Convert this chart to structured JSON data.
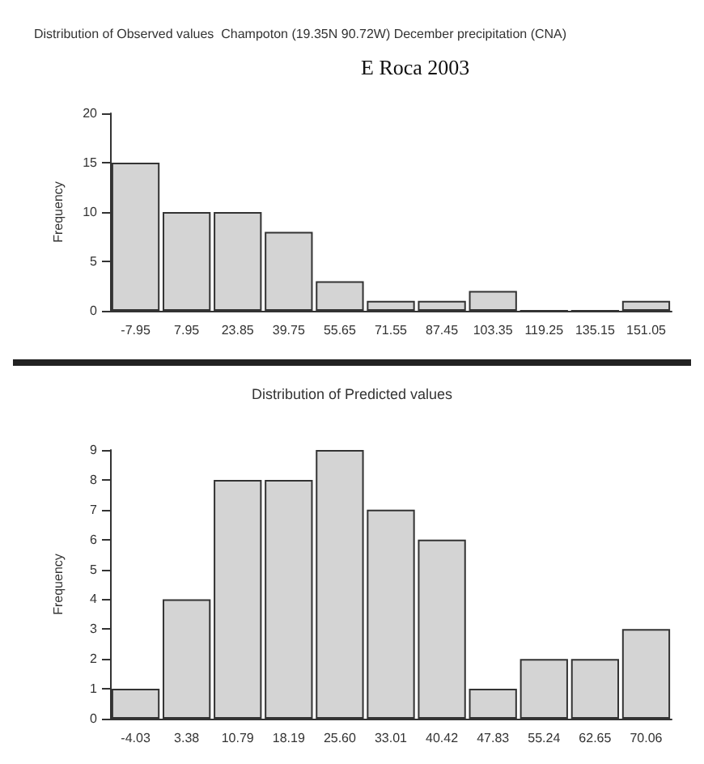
{
  "chart_data": [
    {
      "type": "bar",
      "title": "Distribution of Observed values  Champoton (19.35N 90.72W) December precipitation (CNA)",
      "annotations": [
        "E Roca 2003"
      ],
      "ylabel": "Frequency",
      "categories": [
        "-7.95",
        "7.95",
        "23.85",
        "39.75",
        "55.65",
        "71.55",
        "87.45",
        "103.35",
        "119.25",
        "135.15",
        "151.05"
      ],
      "values": [
        15,
        10,
        10,
        8,
        3,
        1,
        1,
        2,
        0,
        0,
        1
      ],
      "color": "#d4d4d4",
      "ylim": [
        0,
        20
      ],
      "yticks": [
        0,
        5,
        10,
        15,
        20
      ]
    },
    {
      "type": "bar",
      "title": "Distribution of Predicted values",
      "ylabel": "Frequency",
      "categories": [
        "-4.03",
        "3.38",
        "10.79",
        "18.19",
        "25.60",
        "33.01",
        "40.42",
        "47.83",
        "55.24",
        "62.65",
        "70.06"
      ],
      "values": [
        1,
        4,
        8,
        8,
        9,
        7,
        6,
        1,
        2,
        2,
        3
      ],
      "color": "#d4d4d4",
      "ylim": [
        0,
        9
      ],
      "yticks": [
        0,
        1,
        2,
        3,
        4,
        5,
        6,
        7,
        8,
        9
      ]
    }
  ]
}
